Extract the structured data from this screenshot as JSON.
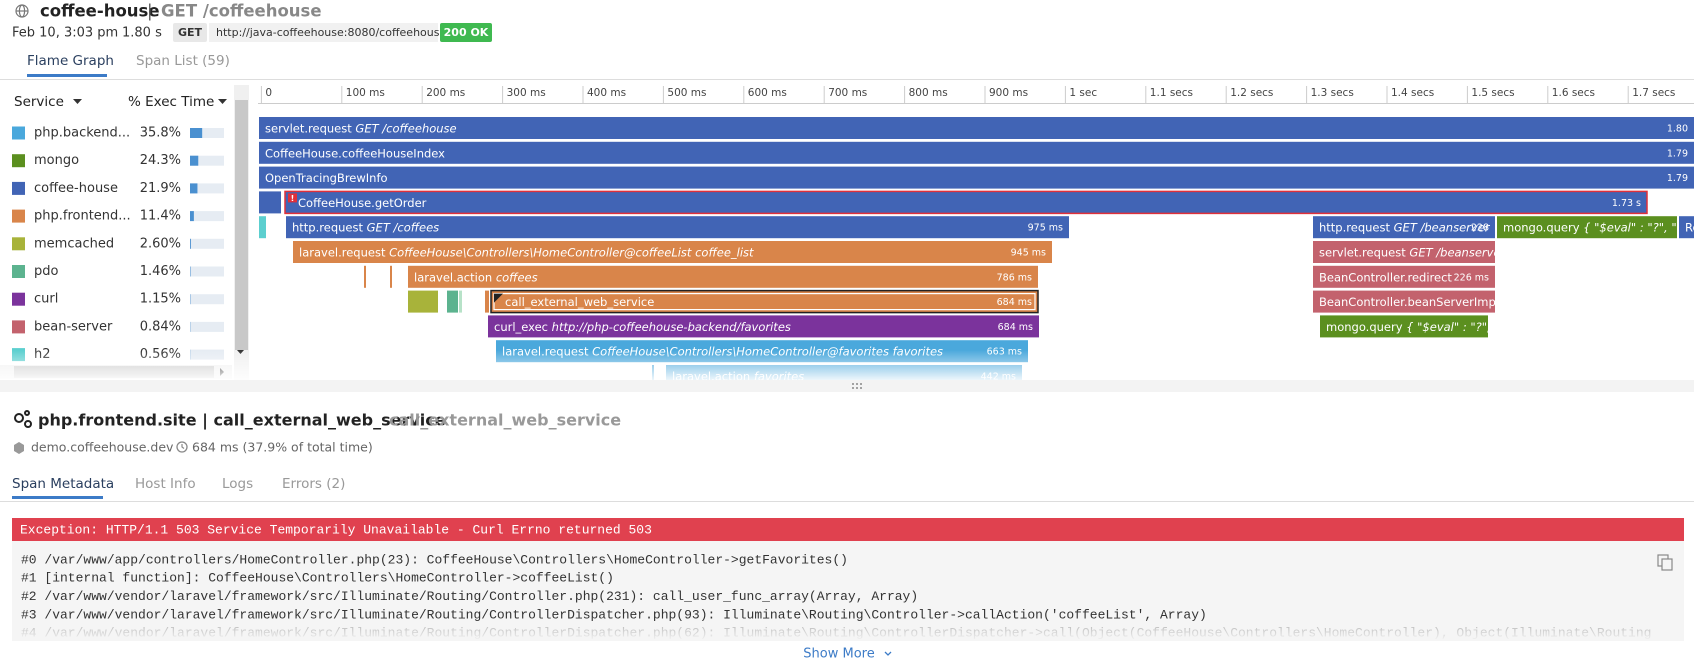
{
  "header": {
    "service": "coffee-house",
    "separator": "|",
    "resource": "GET /coffeehouse",
    "date": "Feb 10, 3:03 pm",
    "duration": "1.80 s",
    "method": "GET",
    "url": "http://java-coffeehouse:8080/coffeehouse",
    "status": "200 OK"
  },
  "tabs": [
    "Flame Graph",
    "Span List (59)"
  ],
  "legend": {
    "columns": [
      "Service",
      "% Exec Time"
    ],
    "rows": [
      {
        "name": "php.backend...",
        "exec_time": 35.8,
        "exec_time_label": "35.8%",
        "color": "#4aa8dc"
      },
      {
        "name": "mongo",
        "exec_time": 24.3,
        "exec_time_label": "24.3%",
        "color": "#5b8f1f"
      },
      {
        "name": "coffee-house",
        "exec_time": 21.9,
        "exec_time_label": "21.9%",
        "color": "#4164b5"
      },
      {
        "name": "php.frontend...",
        "exec_time": 11.4,
        "exec_time_label": "11.4%",
        "color": "#d9854a"
      },
      {
        "name": "memcached",
        "exec_time": 2.6,
        "exec_time_label": "2.60%",
        "color": "#a8b33a"
      },
      {
        "name": "pdo",
        "exec_time": 1.46,
        "exec_time_label": "1.46%",
        "color": "#5cb38f"
      },
      {
        "name": "curl",
        "exec_time": 1.15,
        "exec_time_label": "1.15%",
        "color": "#7b339c"
      },
      {
        "name": "bean-server",
        "exec_time": 0.84,
        "exec_time_label": "0.84%",
        "color": "#c3626d"
      },
      {
        "name": "h2",
        "exec_time": 0.56,
        "exec_time_label": "0.56%",
        "color": "#5ccfcf"
      }
    ]
  },
  "axis_ticks": [
    "0",
    "100 ms",
    "200 ms",
    "300 ms",
    "400 ms",
    "500 ms",
    "600 ms",
    "700 ms",
    "800 ms",
    "900 ms",
    "1 sec",
    "1.1 secs",
    "1.2 secs",
    "1.3 secs",
    "1.4 secs",
    "1.5 secs",
    "1.6 secs",
    "1.7 secs"
  ],
  "spans": [
    {
      "name": "servlet.request",
      "detail": "GET /coffeehouse",
      "duration": "1.80",
      "color": "#4164b5"
    },
    {
      "name": "CoffeeHouse.coffeeHouseIndex",
      "duration": "1.79",
      "color": "#4164b5"
    },
    {
      "name": "OpenTracingBrewInfo",
      "duration": "1.79",
      "color": "#4164b5"
    },
    {
      "name": "CoffeeHouse.getOrder",
      "duration": "1.73 s",
      "color": "#4164b5",
      "badge": "!"
    },
    {
      "name": "http.request",
      "detail": "GET /coffees",
      "duration": "975 ms",
      "color": "#4164b5"
    },
    {
      "name": "http.request",
      "detail": "GET /beanserver",
      "duration": "228",
      "color": "#4164b5"
    },
    {
      "name": "mongo.query",
      "detail": "{ \"$eval\" : \"?\", \"find\"...",
      "color": "#5b8f1f"
    },
    {
      "name": "Re",
      "color": "#4164b5"
    },
    {
      "name": "laravel.request",
      "detail": "CoffeeHouse\\Controllers\\HomeController@coffeeList coffee_list",
      "duration": "945 ms",
      "color": "#d9854a"
    },
    {
      "name": "servlet.request",
      "detail": "GET /beanserver/...",
      "color": "#c3626d"
    },
    {
      "name": "laravel.action",
      "detail": "coffees",
      "duration": "786 ms",
      "color": "#d9854a"
    },
    {
      "name": "BeanController.redirect",
      "duration": "226 ms",
      "color": "#c3626d"
    },
    {
      "name": "call_external_web_service",
      "duration": "684 ms",
      "color": "#d9854a"
    },
    {
      "name": "BeanController.beanServerImpl",
      "color": "#c3626d"
    },
    {
      "name": "curl_exec",
      "detail": "http://php-coffeehouse-backend/favorites",
      "duration": "684 ms",
      "color": "#7b339c"
    },
    {
      "name": "mongo.query",
      "detail": "{ \"$eval\" : \"?\", \"fi...",
      "color": "#5b8f1f"
    },
    {
      "name": "laravel.request",
      "detail": "CoffeeHouse\\Controllers\\HomeController@favorites favorites",
      "duration": "663 ms",
      "color": "#4aa8dc"
    },
    {
      "name": "laravel.action",
      "detail": "favorites",
      "duration": "442 ms",
      "color": "#4aa8dc"
    }
  ],
  "detail": {
    "title": "php.frontend.site | call_external_web_service",
    "resource": "call_external_web_service",
    "host": "demo.coffeehouse.dev",
    "time": "684 ms (37.9% of total time)",
    "tabs": [
      "Span Metadata",
      "Host Info",
      "Logs",
      "Errors (2)"
    ],
    "error": "Exception: HTTP/1.1 503 Service Temporarily Unavailable - Curl Errno returned 503",
    "stack": [
      "#0 /var/www/app/controllers/HomeController.php(23): CoffeeHouse\\Controllers\\HomeController->getFavorites()",
      "#1 [internal function]: CoffeeHouse\\Controllers\\HomeController->coffeeList()",
      "#2 /var/www/vendor/laravel/framework/src/Illuminate/Routing/Controller.php(231): call_user_func_array(Array, Array)",
      "#3 /var/www/vendor/laravel/framework/src/Illuminate/Routing/ControllerDispatcher.php(93): Illuminate\\Routing\\Controller->callAction('coffeeList', Array)",
      "#4 /var/www/vendor/laravel/framework/src/Illuminate/Routing/ControllerDispatcher.php(62): Illuminate\\Routing\\ControllerDispatcher->call(Object(CoffeeHouse\\Controllers\\HomeController), Object(Illuminate\\Routing"
    ],
    "show_more": "Show More"
  }
}
